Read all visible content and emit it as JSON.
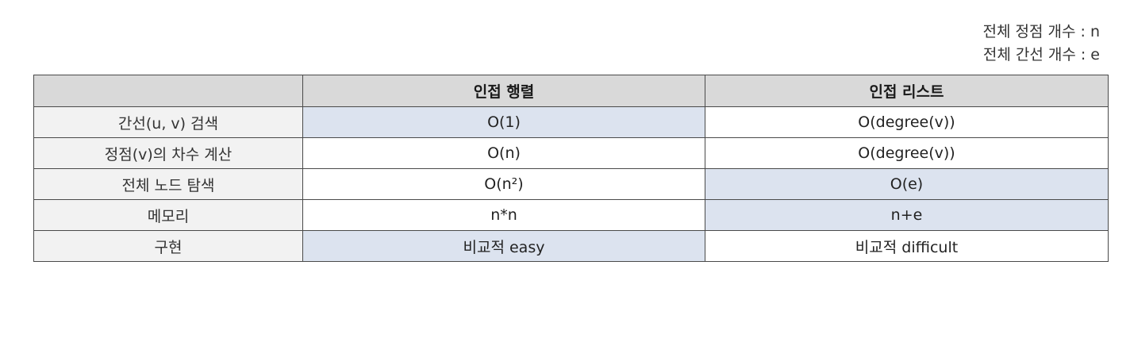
{
  "legend": {
    "vertex_count": "전체 정점 개수 : n",
    "edge_count": "전체 간선 개수 : e"
  },
  "table": {
    "headers": [
      "",
      "인접 행렬",
      "인접 리스트"
    ],
    "rows": [
      {
        "label": "간선(u, v) 검색",
        "matrix": "O(1)",
        "list": "O(degree(v))",
        "highlight": [
          "matrix"
        ]
      },
      {
        "label": "정점(v)의 차수 계산",
        "matrix": "O(n)",
        "list": "O(degree(v))",
        "highlight": []
      },
      {
        "label": "전체 노드 탐색",
        "matrix": "O(n²)",
        "list": "O(e)",
        "highlight": [
          "list"
        ]
      },
      {
        "label": "메모리",
        "matrix": "n*n",
        "list": "n+e",
        "highlight": [
          "list"
        ]
      },
      {
        "label": "구현",
        "matrix": "비교적 easy",
        "list": "비교적 difficult",
        "highlight": [
          "matrix"
        ]
      }
    ]
  },
  "colors": {
    "header_bg": "#d9d9d9",
    "row_label_bg": "#f2f2f2",
    "highlight_bg": "#dce3ef",
    "border": "#4a4a4a"
  }
}
